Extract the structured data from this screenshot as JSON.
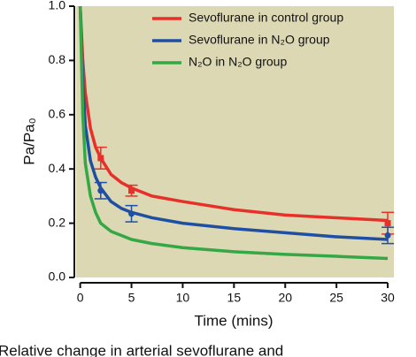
{
  "chart_data": {
    "type": "line",
    "ylabel": "Pa/Pa₀",
    "xlabel": "Time (mins)",
    "caption": "Relative change in arterial sevoflurane and",
    "x": [
      0,
      0.25,
      0.5,
      1,
      1.5,
      2,
      3,
      4,
      5,
      7,
      10,
      15,
      20,
      25,
      30
    ],
    "series": [
      {
        "name": "Sevoflurane in control group",
        "color": "#e8302a",
        "marker": "square",
        "values": [
          1.0,
          0.8,
          0.68,
          0.55,
          0.48,
          0.44,
          0.38,
          0.35,
          0.33,
          0.3,
          0.28,
          0.25,
          0.23,
          0.22,
          0.21
        ],
        "points": {
          "x": [
            2,
            5,
            30
          ],
          "values": [
            0.44,
            0.32,
            0.2
          ],
          "errors": [
            0.04,
            0.02,
            0.04
          ]
        }
      },
      {
        "name": "Sevoflurane in N₂O group",
        "color": "#1f4fa3",
        "marker": "circle",
        "values": [
          1.0,
          0.72,
          0.56,
          0.43,
          0.37,
          0.33,
          0.28,
          0.255,
          0.24,
          0.22,
          0.2,
          0.18,
          0.165,
          0.15,
          0.14
        ],
        "points": {
          "x": [
            2,
            5,
            30
          ],
          "values": [
            0.32,
            0.235,
            0.155
          ],
          "errors": [
            0.03,
            0.03,
            0.03
          ]
        }
      },
      {
        "name": "N₂O in N₂O group",
        "color": "#33a845",
        "values": [
          1.0,
          0.6,
          0.42,
          0.3,
          0.24,
          0.2,
          0.17,
          0.155,
          0.14,
          0.125,
          0.11,
          0.095,
          0.085,
          0.078,
          0.07
        ]
      }
    ],
    "xlim": [
      -0.4,
      30.6
    ],
    "ylim": [
      0,
      1.0
    ],
    "xticks": [
      0,
      5,
      10,
      15,
      20,
      25,
      30
    ],
    "yticks": [
      {
        "value": 0,
        "label": "0.0"
      },
      0.2,
      0.4,
      0.6,
      0.8,
      {
        "value": 1.0,
        "label": "1.0"
      }
    ],
    "background": "#dcd8b3",
    "legend": "upper right"
  }
}
